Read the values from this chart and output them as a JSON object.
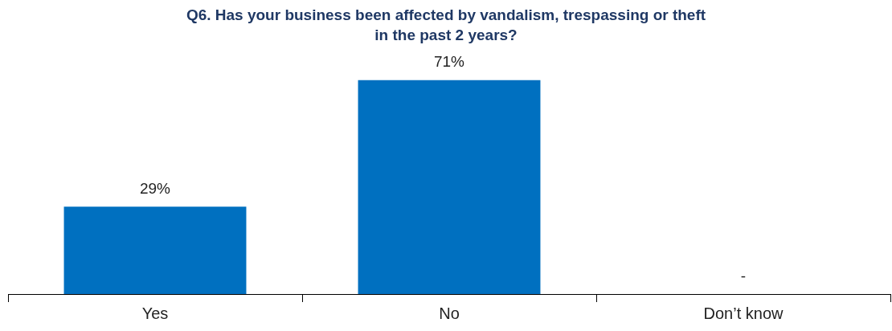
{
  "chart_data": {
    "type": "bar",
    "title": "Q6. Has your business been affected by vandalism, trespassing or theft in the past 2 years?",
    "categories": [
      "Yes",
      "No",
      "Don’t know"
    ],
    "values": [
      29,
      71,
      null
    ],
    "value_labels": [
      "29%",
      "71%",
      "-"
    ],
    "color": "#0070c0",
    "grid": false,
    "legend": false,
    "tick_labels": "x"
  }
}
